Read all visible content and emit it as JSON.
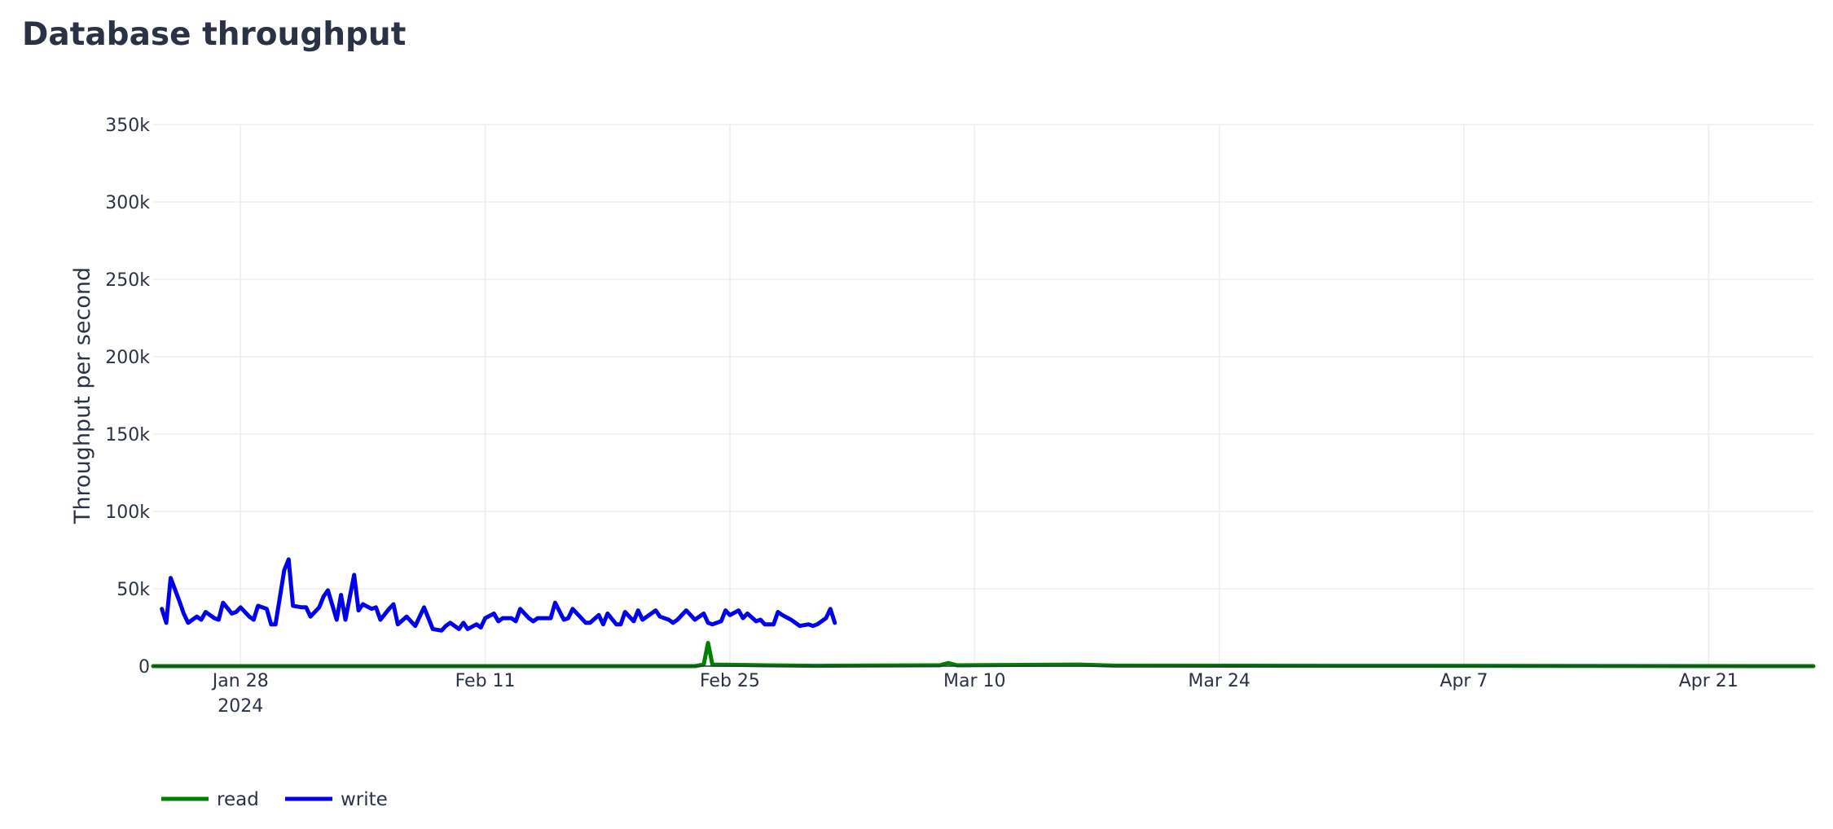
{
  "chart_data": {
    "type": "line",
    "title": "Database throughput",
    "xlabel": "",
    "ylabel": "Throughput per second",
    "x_range": [
      "2024-01-23",
      "2024-04-27"
    ],
    "ylim": [
      0,
      350000
    ],
    "x_ticks": [
      {
        "date": "2024-01-28",
        "label": "Jan 28",
        "sublabel": "2024"
      },
      {
        "date": "2024-02-11",
        "label": "Feb 11"
      },
      {
        "date": "2024-02-25",
        "label": "Feb 25"
      },
      {
        "date": "2024-03-10",
        "label": "Mar 10"
      },
      {
        "date": "2024-03-24",
        "label": "Mar 24"
      },
      {
        "date": "2024-04-07",
        "label": "Apr 7"
      },
      {
        "date": "2024-04-21",
        "label": "Apr 21"
      }
    ],
    "y_ticks": [
      {
        "value": 0,
        "label": "0"
      },
      {
        "value": 50000,
        "label": "50k"
      },
      {
        "value": 100000,
        "label": "100k"
      },
      {
        "value": 150000,
        "label": "150k"
      },
      {
        "value": 200000,
        "label": "200k"
      },
      {
        "value": 250000,
        "label": "250k"
      },
      {
        "value": 300000,
        "label": "300k"
      },
      {
        "value": 350000,
        "label": "350k"
      }
    ],
    "grid": true,
    "legend_position": "bottom-left",
    "series": [
      {
        "name": "read",
        "color": "#008000",
        "points": [
          [
            "2024-01-23",
            0
          ],
          [
            "2024-02-23",
            0
          ],
          [
            "2024-02-23T12:00",
            1000
          ],
          [
            "2024-02-23T18:00",
            15000
          ],
          [
            "2024-02-24",
            1000
          ],
          [
            "2024-02-27",
            500
          ],
          [
            "2024-03-01",
            200
          ],
          [
            "2024-03-08",
            500
          ],
          [
            "2024-03-08T12:00",
            2000
          ],
          [
            "2024-03-09",
            500
          ],
          [
            "2024-03-16",
            1000
          ],
          [
            "2024-03-18",
            300
          ],
          [
            "2024-04-27",
            0
          ]
        ]
      },
      {
        "name": "write",
        "color": "#0000ee",
        "points": [
          [
            "2024-01-23T12:00",
            37000
          ],
          [
            "2024-01-23T18:00",
            28000
          ],
          [
            "2024-01-24",
            57000
          ],
          [
            "2024-01-24T12:00",
            42000
          ],
          [
            "2024-01-24T18:00",
            34000
          ],
          [
            "2024-01-25",
            28000
          ],
          [
            "2024-01-25T12:00",
            32000
          ],
          [
            "2024-01-25T18:00",
            30000
          ],
          [
            "2024-01-26",
            35000
          ],
          [
            "2024-01-26T12:00",
            31000
          ],
          [
            "2024-01-26T18:00",
            30000
          ],
          [
            "2024-01-27",
            41000
          ],
          [
            "2024-01-27T12:00",
            34000
          ],
          [
            "2024-01-27T18:00",
            35000
          ],
          [
            "2024-01-28",
            38000
          ],
          [
            "2024-01-28T12:00",
            32000
          ],
          [
            "2024-01-28T18:00",
            30000
          ],
          [
            "2024-01-29",
            39000
          ],
          [
            "2024-01-29T12:00",
            37000
          ],
          [
            "2024-01-29T18:00",
            27000
          ],
          [
            "2024-01-30",
            27000
          ],
          [
            "2024-01-30T12:00",
            62000
          ],
          [
            "2024-01-30T18:00",
            69000
          ],
          [
            "2024-01-31",
            39000
          ],
          [
            "2024-01-31T12:00",
            38000
          ],
          [
            "2024-01-31T18:00",
            38000
          ],
          [
            "2024-02-01",
            32000
          ],
          [
            "2024-02-01T12:00",
            38000
          ],
          [
            "2024-02-01T18:00",
            45000
          ],
          [
            "2024-02-02",
            49000
          ],
          [
            "2024-02-02T12:00",
            30000
          ],
          [
            "2024-02-02T18:00",
            46000
          ],
          [
            "2024-02-03",
            30000
          ],
          [
            "2024-02-03T12:00",
            59000
          ],
          [
            "2024-02-03T18:00",
            36000
          ],
          [
            "2024-02-04",
            40000
          ],
          [
            "2024-02-04T12:00",
            37000
          ],
          [
            "2024-02-04T18:00",
            38000
          ],
          [
            "2024-02-05",
            30000
          ],
          [
            "2024-02-05T12:00",
            37000
          ],
          [
            "2024-02-05T18:00",
            40000
          ],
          [
            "2024-02-06",
            27000
          ],
          [
            "2024-02-06T12:00",
            32000
          ],
          [
            "2024-02-06T18:00",
            29000
          ],
          [
            "2024-02-07",
            26000
          ],
          [
            "2024-02-07T12:00",
            38000
          ],
          [
            "2024-02-07T18:00",
            31000
          ],
          [
            "2024-02-08",
            24000
          ],
          [
            "2024-02-08T12:00",
            23000
          ],
          [
            "2024-02-08T18:00",
            26000
          ],
          [
            "2024-02-09",
            28000
          ],
          [
            "2024-02-09T12:00",
            24000
          ],
          [
            "2024-02-09T18:00",
            28000
          ],
          [
            "2024-02-10",
            24000
          ],
          [
            "2024-02-10T12:00",
            27000
          ],
          [
            "2024-02-10T18:00",
            25000
          ],
          [
            "2024-02-11",
            31000
          ],
          [
            "2024-02-11T12:00",
            34000
          ],
          [
            "2024-02-11T18:00",
            29000
          ],
          [
            "2024-02-12",
            31000
          ],
          [
            "2024-02-12T12:00",
            31000
          ],
          [
            "2024-02-12T18:00",
            29000
          ],
          [
            "2024-02-13",
            37000
          ],
          [
            "2024-02-13T12:00",
            31000
          ],
          [
            "2024-02-13T18:00",
            29000
          ],
          [
            "2024-02-14",
            31000
          ],
          [
            "2024-02-14T12:00",
            31000
          ],
          [
            "2024-02-14T18:00",
            31000
          ],
          [
            "2024-02-15",
            41000
          ],
          [
            "2024-02-15T12:00",
            30000
          ],
          [
            "2024-02-15T18:00",
            31000
          ],
          [
            "2024-02-16",
            37000
          ],
          [
            "2024-02-16T12:00",
            31000
          ],
          [
            "2024-02-16T18:00",
            28000
          ],
          [
            "2024-02-17",
            28000
          ],
          [
            "2024-02-17T12:00",
            33000
          ],
          [
            "2024-02-17T18:00",
            27000
          ],
          [
            "2024-02-18",
            34000
          ],
          [
            "2024-02-18T12:00",
            27000
          ],
          [
            "2024-02-18T18:00",
            27000
          ],
          [
            "2024-02-19",
            35000
          ],
          [
            "2024-02-19T12:00",
            29000
          ],
          [
            "2024-02-19T18:00",
            36000
          ],
          [
            "2024-02-20",
            30000
          ],
          [
            "2024-02-20T12:00",
            34000
          ],
          [
            "2024-02-20T18:00",
            36000
          ],
          [
            "2024-02-21",
            32000
          ],
          [
            "2024-02-21T12:00",
            30000
          ],
          [
            "2024-02-21T18:00",
            28000
          ],
          [
            "2024-02-22",
            30000
          ],
          [
            "2024-02-22T12:00",
            36000
          ],
          [
            "2024-02-22T18:00",
            33000
          ],
          [
            "2024-02-23",
            30000
          ],
          [
            "2024-02-23T12:00",
            34000
          ],
          [
            "2024-02-23T18:00",
            28000
          ],
          [
            "2024-02-24",
            27000
          ],
          [
            "2024-02-24T12:00",
            29000
          ],
          [
            "2024-02-24T18:00",
            36000
          ],
          [
            "2024-02-25",
            33000
          ],
          [
            "2024-02-25T12:00",
            36000
          ],
          [
            "2024-02-25T18:00",
            31000
          ],
          [
            "2024-02-26",
            34000
          ],
          [
            "2024-02-26T12:00",
            29000
          ],
          [
            "2024-02-26T18:00",
            30000
          ],
          [
            "2024-02-27",
            27000
          ],
          [
            "2024-02-27T12:00",
            27000
          ],
          [
            "2024-02-27T18:00",
            35000
          ],
          [
            "2024-02-28",
            33000
          ],
          [
            "2024-02-28T12:00",
            30000
          ],
          [
            "2024-02-28T18:00",
            28000
          ],
          [
            "2024-02-29",
            26000
          ],
          [
            "2024-02-29T12:00",
            27000
          ],
          [
            "2024-02-29T18:00",
            26000
          ],
          [
            "2024-03-01",
            27000
          ],
          [
            "2024-03-01T12:00",
            31000
          ],
          [
            "2024-03-01T18:00",
            37000
          ],
          [
            "2024-03-02",
            28000
          ]
        ]
      }
    ]
  },
  "legend": {
    "items": [
      {
        "label": "read",
        "color": "#008000"
      },
      {
        "label": "write",
        "color": "#0000ee"
      }
    ]
  }
}
